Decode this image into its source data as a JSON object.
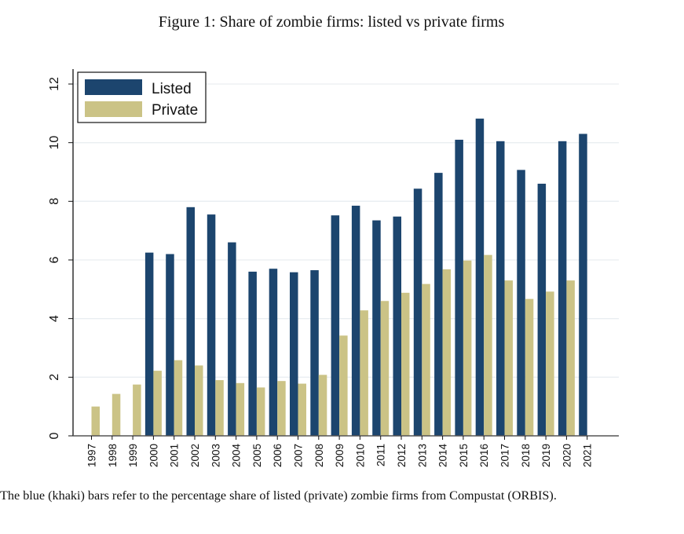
{
  "figure": {
    "title": "Figure 1: Share of zombie firms: listed vs private firms",
    "caption": "The blue (khaki) bars refer to the percentage share of listed (private) zombie firms from Compustat (ORBIS)."
  },
  "chart_data": {
    "type": "bar",
    "title": "Figure 1: Share of zombie firms: listed vs private firms",
    "xlabel": "",
    "ylabel": "",
    "ylim": [
      0,
      12
    ],
    "yticks": [
      0,
      2,
      4,
      6,
      8,
      10,
      12
    ],
    "grid": true,
    "legend_position": "top-left",
    "categories": [
      "1997",
      "1998",
      "1999",
      "2000",
      "2001",
      "2002",
      "2003",
      "2004",
      "2005",
      "2006",
      "2007",
      "2008",
      "2009",
      "2010",
      "2011",
      "2012",
      "2013",
      "2014",
      "2015",
      "2016",
      "2017",
      "2018",
      "2019",
      "2020",
      "2021"
    ],
    "series": [
      {
        "name": "Listed",
        "color": "#1c456e",
        "values": [
          null,
          null,
          null,
          6.25,
          6.2,
          7.8,
          7.55,
          6.6,
          5.6,
          5.7,
          5.58,
          5.65,
          7.52,
          7.85,
          7.35,
          7.48,
          8.43,
          8.97,
          10.1,
          10.82,
          10.05,
          9.07,
          8.6,
          10.05,
          10.3
        ]
      },
      {
        "name": "Private",
        "color": "#cbc386",
        "values": [
          1.0,
          1.43,
          1.75,
          2.22,
          2.58,
          2.4,
          1.9,
          1.8,
          1.65,
          1.87,
          1.78,
          2.08,
          3.42,
          4.28,
          4.6,
          4.88,
          5.18,
          5.68,
          5.98,
          6.17,
          5.3,
          4.67,
          4.92,
          5.3,
          null
        ]
      }
    ]
  }
}
